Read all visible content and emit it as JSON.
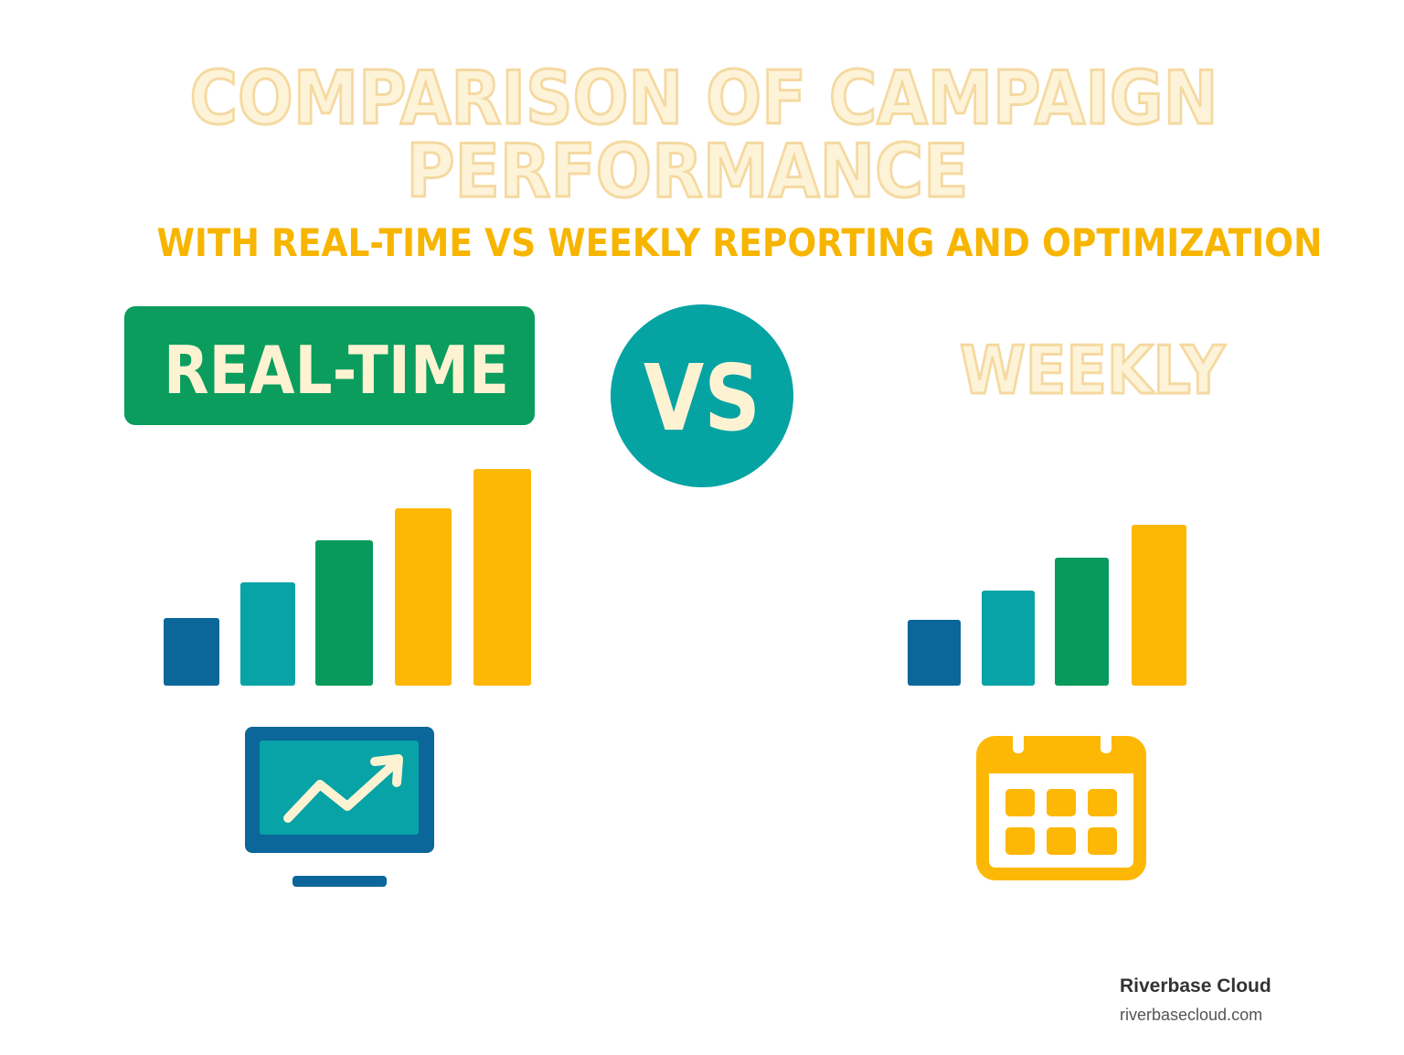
{
  "title": {
    "line1": "COMPARISON OF CAMPAIGN",
    "line2": "PERFORMANCE"
  },
  "subtitle": "WITH REAL-TIME VS WEEKLY REPORTING AND OPTIMIZATION",
  "left": {
    "label": "REAL-TIME"
  },
  "versus": "VS",
  "right": {
    "label": "WEEKLY"
  },
  "footer": {
    "brand": "Riverbase Cloud",
    "url": "riverbasecloud.com"
  }
}
